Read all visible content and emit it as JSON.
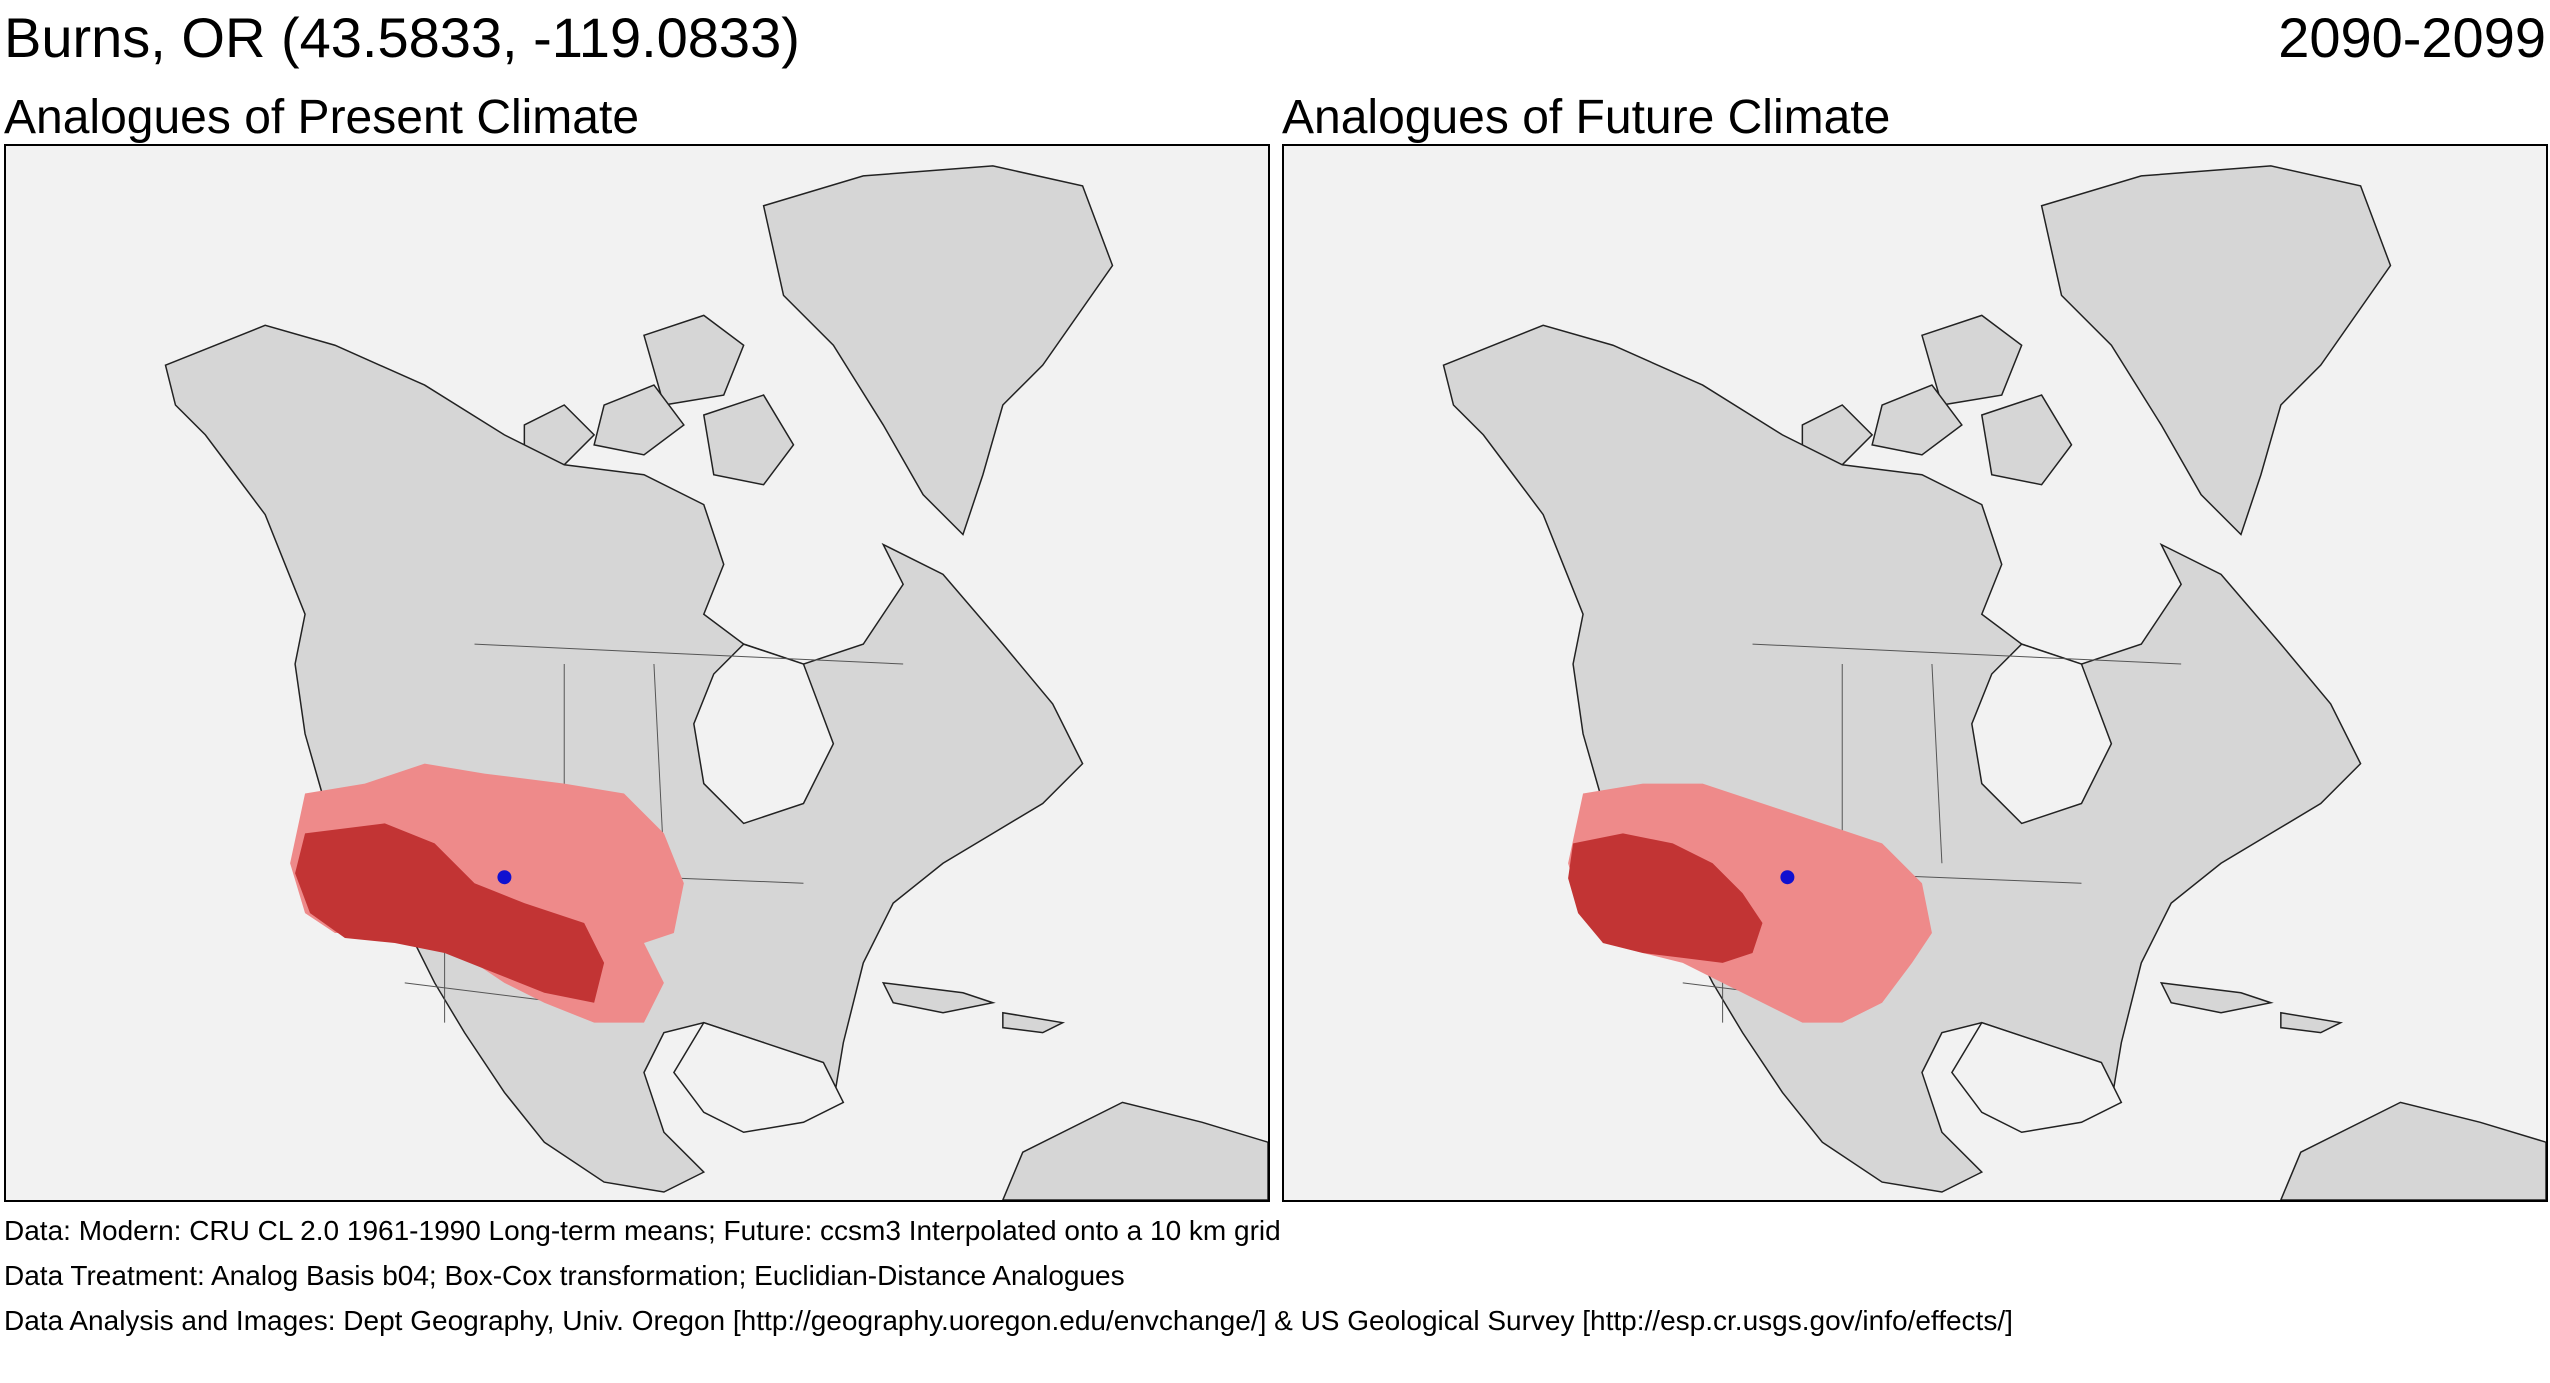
{
  "header": {
    "location": "Burns, OR  (43.5833, -119.0833)",
    "period": "2090-2099"
  },
  "panels": [
    {
      "id": "present",
      "title": "Analogues of Present Climate"
    },
    {
      "id": "future",
      "title": "Analogues of Future Climate"
    }
  ],
  "colors": {
    "land": "#d6d6d6",
    "ocean": "#f2f2f2",
    "analogue_light": "#ee8a8a",
    "analogue_dark": "#c23434",
    "site_marker": "#1010d0",
    "borders": "#222222"
  },
  "footer": {
    "data": "Data:  Modern: CRU CL 2.0 1961-1990 Long-term means; Future: ccsm3 Interpolated onto a 10 km grid",
    "treatment": "Data Treatment:  Analog Basis b04; Box-Cox transformation; Euclidian-Distance Analogues",
    "analysis": "Data Analysis and Images:  Dept Geography, Univ. Oregon [http://geography.uoregon.edu/envchange/] & US Geological Survey [http://esp.cr.usgs.gov/info/effects/]"
  }
}
